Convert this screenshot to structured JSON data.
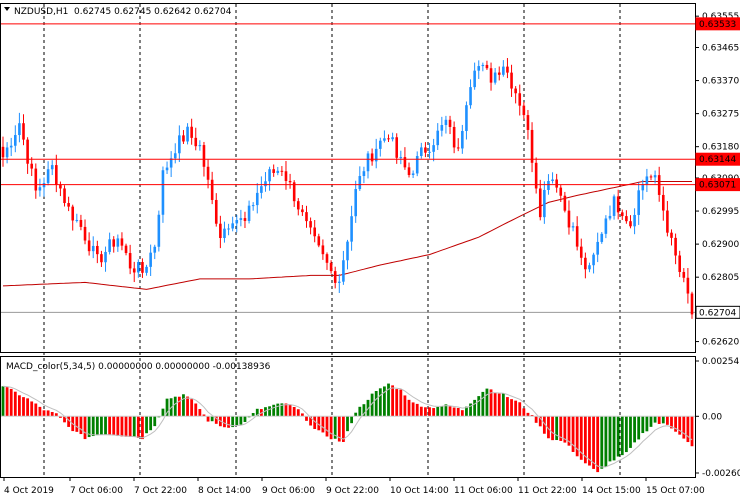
{
  "window": {
    "symbol_label": "NZDUSD,H1",
    "ohlc_label": "0.62745 0.62745 0.62642 0.62704",
    "macd_label": "MACD_color(5,34,5) 0.00000000 0.00000000 -0.00138936"
  },
  "colors": {
    "bull": "#1e90ff",
    "bear": "#ff0000",
    "ma": "#c00000",
    "macd_up": "#008000",
    "macd_down": "#ff0000",
    "hline": "#ff0000",
    "grid": "#000000"
  },
  "price_axis": {
    "ticks": [
      "0.63555",
      "0.63465",
      "0.63370",
      "0.63275",
      "0.63180",
      "0.63090",
      "0.62995",
      "0.62900",
      "0.62805",
      "0.62620"
    ],
    "ylim": [
      0.6259,
      0.6359
    ]
  },
  "price_labels": [
    {
      "value": 0.63533,
      "label": "0.63533"
    },
    {
      "value": 0.63144,
      "label": "0.63144"
    },
    {
      "value": 0.63071,
      "label": "0.63071"
    },
    {
      "value": 0.62704,
      "label": "0.62704"
    }
  ],
  "macd_axis": {
    "ticks": [
      "0.0025413",
      "0.00",
      "-0.002606"
    ],
    "ylim": [
      -0.002606,
      0.0025413
    ]
  },
  "time_axis": {
    "labels": [
      "4 Oct 2019",
      "7 Oct 06:00",
      "7 Oct 22:00",
      "8 Oct 14:00",
      "9 Oct 06:00",
      "9 Oct 22:00",
      "10 Oct 14:00",
      "11 Oct 06:00",
      "11 Oct 22:00",
      "14 Oct 15:00",
      "15 Oct 07:00"
    ]
  },
  "chart_data": {
    "type": "candlestick",
    "symbol": "NZDUSD",
    "timeframe": "H1",
    "anchors": [
      [
        0,
        0.6315
      ],
      [
        4,
        0.6325
      ],
      [
        8,
        0.6305
      ],
      [
        12,
        0.6312
      ],
      [
        16,
        0.63
      ],
      [
        19,
        0.6295
      ],
      [
        21,
        0.629
      ],
      [
        23,
        0.6285
      ],
      [
        25,
        0.6288
      ],
      [
        28,
        0.6292
      ],
      [
        31,
        0.6284
      ],
      [
        34,
        0.6282
      ],
      [
        37,
        0.629
      ],
      [
        39,
        0.631
      ],
      [
        42,
        0.6318
      ],
      [
        45,
        0.6322
      ],
      [
        48,
        0.6318
      ],
      [
        51,
        0.6302
      ],
      [
        53,
        0.6293
      ],
      [
        56,
        0.6298
      ],
      [
        59,
        0.6296
      ],
      [
        62,
        0.6305
      ],
      [
        65,
        0.631
      ],
      [
        68,
        0.6312
      ],
      [
        71,
        0.6304
      ],
      [
        74,
        0.6295
      ],
      [
        77,
        0.6288
      ],
      [
        80,
        0.6282
      ],
      [
        82,
        0.628
      ],
      [
        84,
        0.6292
      ],
      [
        86,
        0.6305
      ],
      [
        88,
        0.6312
      ],
      [
        91,
        0.6318
      ],
      [
        94,
        0.6322
      ],
      [
        96,
        0.6315
      ],
      [
        99,
        0.631
      ],
      [
        102,
        0.6316
      ],
      [
        105,
        0.632
      ],
      [
        108,
        0.6325
      ],
      [
        111,
        0.6316
      ],
      [
        113,
        0.6332
      ],
      [
        115,
        0.6342
      ],
      [
        117,
        0.634
      ],
      [
        119,
        0.6338
      ],
      [
        122,
        0.6342
      ],
      [
        125,
        0.6334
      ],
      [
        127,
        0.6328
      ],
      [
        129,
        0.6315
      ],
      [
        131,
        0.63
      ],
      [
        133,
        0.631
      ],
      [
        135,
        0.6308
      ],
      [
        137,
        0.63
      ],
      [
        139,
        0.6294
      ],
      [
        141,
        0.6285
      ],
      [
        143,
        0.6282
      ],
      [
        145,
        0.629
      ],
      [
        147,
        0.6298
      ],
      [
        149,
        0.6302
      ],
      [
        151,
        0.63
      ],
      [
        153,
        0.6296
      ],
      [
        155,
        0.6305
      ],
      [
        157,
        0.631
      ],
      [
        159,
        0.6308
      ],
      [
        161,
        0.63
      ],
      [
        163,
        0.629
      ],
      [
        165,
        0.6282
      ],
      [
        167,
        0.6275
      ],
      [
        168,
        0.627
      ]
    ],
    "candle_count": 169,
    "moving_average": [
      [
        0,
        0.6278
      ],
      [
        20,
        0.6279
      ],
      [
        35,
        0.6277
      ],
      [
        48,
        0.628
      ],
      [
        60,
        0.628
      ],
      [
        75,
        0.6281
      ],
      [
        82,
        0.6281
      ],
      [
        92,
        0.6284
      ],
      [
        104,
        0.6287
      ],
      [
        116,
        0.6292
      ],
      [
        126,
        0.6298
      ],
      [
        133,
        0.6302
      ],
      [
        140,
        0.6304
      ],
      [
        148,
        0.6306
      ],
      [
        156,
        0.6308
      ],
      [
        168,
        0.6308
      ]
    ],
    "macd_anchors": [
      [
        0,
        0.0014
      ],
      [
        6,
        0.0008
      ],
      [
        10,
        0.0003
      ],
      [
        13,
        0.0001
      ],
      [
        16,
        -0.0005
      ],
      [
        20,
        -0.001
      ],
      [
        24,
        -0.0008
      ],
      [
        30,
        -0.0009
      ],
      [
        34,
        -0.001
      ],
      [
        37,
        -0.0004
      ],
      [
        40,
        0.0008
      ],
      [
        44,
        0.001
      ],
      [
        47,
        0.0006
      ],
      [
        50,
        -0.0002
      ],
      [
        54,
        -0.0005
      ],
      [
        58,
        -0.0004
      ],
      [
        62,
        0.0003
      ],
      [
        66,
        0.0005
      ],
      [
        69,
        0.0006
      ],
      [
        72,
        0.0003
      ],
      [
        76,
        -0.0006
      ],
      [
        80,
        -0.001
      ],
      [
        83,
        -0.0012
      ],
      [
        86,
        0.0002
      ],
      [
        90,
        0.001
      ],
      [
        94,
        0.0015
      ],
      [
        97,
        0.0012
      ],
      [
        100,
        0.0006
      ],
      [
        104,
        0.0004
      ],
      [
        108,
        0.0005
      ],
      [
        112,
        0.0003
      ],
      [
        115,
        0.0008
      ],
      [
        118,
        0.0013
      ],
      [
        122,
        0.001
      ],
      [
        126,
        0.0006
      ],
      [
        129,
        0.0
      ],
      [
        133,
        -0.001
      ],
      [
        137,
        -0.0012
      ],
      [
        141,
        -0.002
      ],
      [
        145,
        -0.0026
      ],
      [
        148,
        -0.0021
      ],
      [
        152,
        -0.0017
      ],
      [
        156,
        -0.0008
      ],
      [
        159,
        -0.0003
      ],
      [
        162,
        -0.0004
      ],
      [
        165,
        -0.0008
      ],
      [
        168,
        -0.0014
      ]
    ]
  }
}
